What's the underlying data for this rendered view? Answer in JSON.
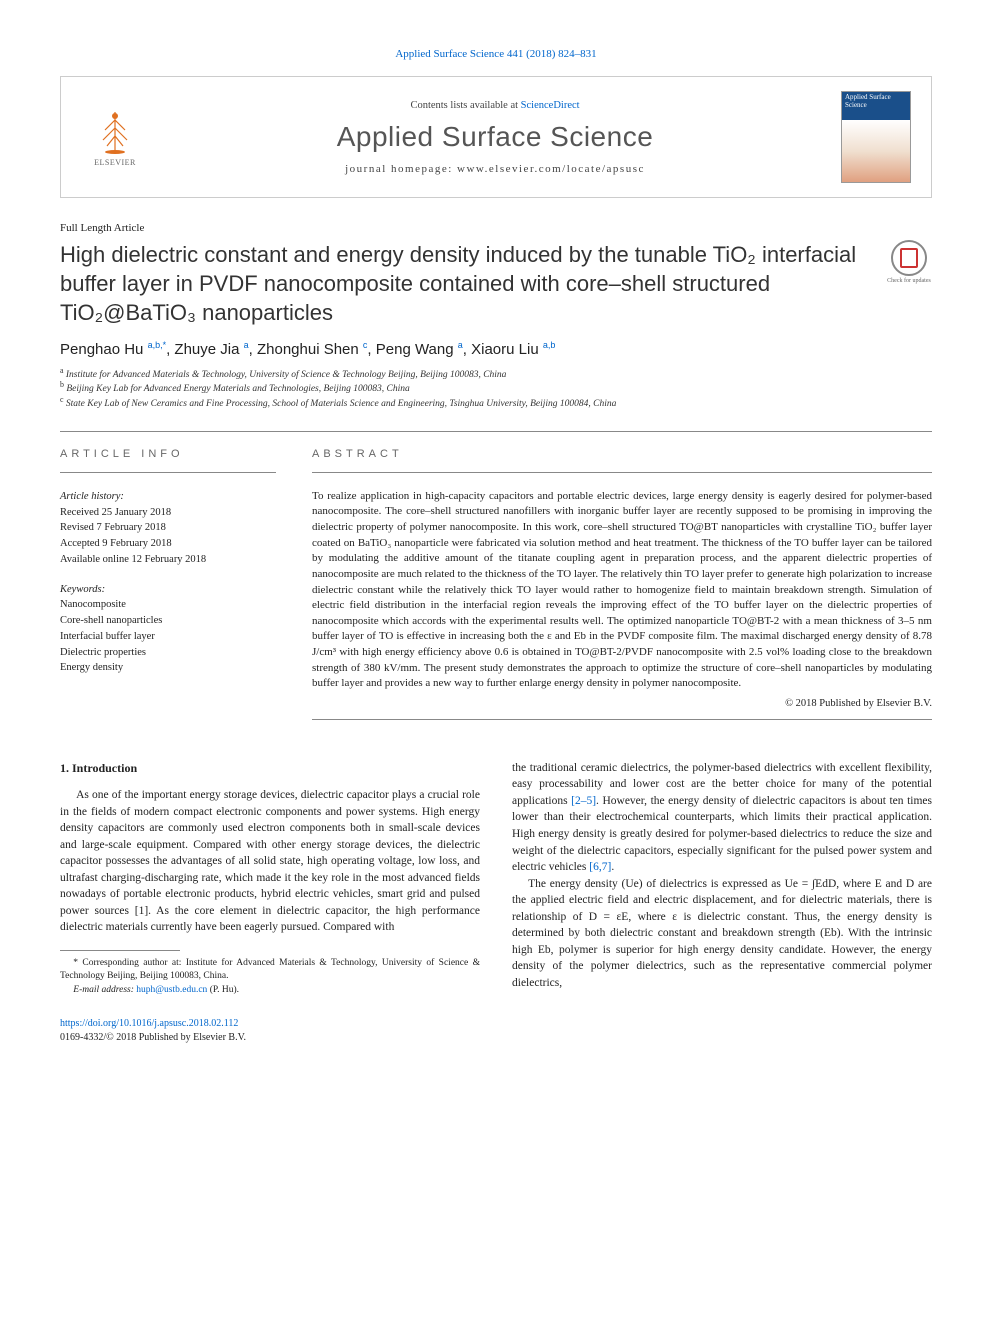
{
  "header_link": {
    "text": "Applied Surface Science 441 (2018) 824–831"
  },
  "masthead": {
    "contents_prefix": "Contents lists available at ",
    "contents_link": "ScienceDirect",
    "journal_name": "Applied Surface Science",
    "homepage_prefix": "journal homepage: ",
    "homepage_url": "www.elsevier.com/locate/apsusc",
    "elsevier_label": "ELSEVIER",
    "cover_title": "Applied Surface Science"
  },
  "article_type": "Full Length Article",
  "title": "High dielectric constant and energy density induced by the tunable TiO₂ interfacial buffer layer in PVDF nanocomposite contained with core–shell structured TiO₂@BaTiO₃ nanoparticles",
  "check_updates": "Check for updates",
  "authors_html": "Penghao Hu <sup>a,b,*</sup>, Zhuye Jia <sup>a</sup>, Zhonghui Shen <sup>c</sup>, Peng Wang <sup>a</sup>, Xiaoru Liu <sup>a,b</sup>",
  "affiliations": {
    "a": "Institute for Advanced Materials & Technology, University of Science & Technology Beijing, Beijing 100083, China",
    "b": "Beijing Key Lab for Advanced Energy Materials and Technologies, Beijing 100083, China",
    "c": "State Key Lab of New Ceramics and Fine Processing, School of Materials Science and Engineering, Tsinghua University, Beijing 100084, China"
  },
  "article_info": {
    "heading": "ARTICLE INFO",
    "history_label": "Article history:",
    "received": "Received 25 January 2018",
    "revised": "Revised 7 February 2018",
    "accepted": "Accepted 9 February 2018",
    "online": "Available online 12 February 2018",
    "keywords_label": "Keywords:",
    "keywords": [
      "Nanocomposite",
      "Core-shell nanoparticles",
      "Interfacial buffer layer",
      "Dielectric properties",
      "Energy density"
    ]
  },
  "abstract": {
    "heading": "ABSTRACT",
    "text": "To realize application in high-capacity capacitors and portable electric devices, large energy density is eagerly desired for polymer-based nanocomposite. The core–shell structured nanofillers with inorganic buffer layer are recently supposed to be promising in improving the dielectric property of polymer nanocomposite. In this work, core–shell structured TO@BT nanoparticles with crystalline TiO₂ buffer layer coated on BaTiO₃ nanoparticle were fabricated via solution method and heat treatment. The thickness of the TO buffer layer can be tailored by modulating the additive amount of the titanate coupling agent in preparation process, and the apparent dielectric properties of nanocomposite are much related to the thickness of the TO layer. The relatively thin TO layer prefer to generate high polarization to increase dielectric constant while the relatively thick TO layer would rather to homogenize field to maintain breakdown strength. Simulation of electric field distribution in the interfacial region reveals the improving effect of the TO buffer layer on the dielectric properties of nanocomposite which accords with the experimental results well. The optimized nanoparticle TO@BT-2 with a mean thickness of 3–5 nm buffer layer of TO is effective in increasing both the ε and Eb in the PVDF composite film. The maximal discharged energy density of 8.78 J/cm³ with high energy efficiency above 0.6 is obtained in TO@BT-2/PVDF nanocomposite with 2.5 vol% loading close to the breakdown strength of 380 kV/mm. The present study demonstrates the approach to optimize the structure of core–shell nanoparticles by modulating buffer layer and provides a new way to further enlarge energy density in polymer nanocomposite.",
    "copyright": "© 2018 Published by Elsevier B.V."
  },
  "intro": {
    "heading": "1. Introduction",
    "p1": "As one of the important energy storage devices, dielectric capacitor plays a crucial role in the fields of modern compact electronic components and power systems. High energy density capacitors are commonly used electron components both in small-scale devices and large-scale equipment. Compared with other energy storage devices, the dielectric capacitor possesses the advantages of all solid state, high operating voltage, low loss, and ultrafast charging-discharging rate, which made it the key role in the most advanced fields nowadays of portable electronic products, hybrid electric vehicles, smart grid and pulsed power sources [1]. As the core element in dielectric capacitor, the high performance dielectric materials currently have been eagerly pursued. Compared with",
    "p2a": "the traditional ceramic dielectrics, the polymer-based dielectrics with excellent flexibility, easy processability and lower cost are the better choice for many of the potential applications ",
    "p2_ref": "[2–5]",
    "p2b": ". However, the energy density of dielectric capacitors is about ten times lower than their electrochemical counterparts, which limits their practical application. High energy density is greatly desired for polymer-based dielectrics to reduce the size and weight of the dielectric capacitors, especially significant for the pulsed power system and electric vehicles ",
    "p2_ref2": "[6,7]",
    "p2c": ".",
    "p3": "The energy density (Ue) of dielectrics is expressed as Ue = ∫EdD, where E and D are the applied electric field and electric displacement, and for dielectric materials, there is relationship of D = εE, where ε is dielectric constant. Thus, the energy density is determined by both dielectric constant and breakdown strength (Eb). With the intrinsic high Eb, polymer is superior for high energy density candidate. However, the energy density of the polymer dielectrics, such as the representative commercial polymer dielectrics,"
  },
  "footnote": {
    "corresponding": "* Corresponding author at: Institute for Advanced Materials & Technology, University of Science & Technology Beijing, Beijing 100083, China.",
    "email_label": "E-mail address: ",
    "email": "huph@ustb.edu.cn",
    "email_suffix": " (P. Hu)."
  },
  "footer": {
    "doi": "https://doi.org/10.1016/j.apsusc.2018.02.112",
    "issn_line": "0169-4332/© 2018 Published by Elsevier B.V."
  },
  "colors": {
    "link": "#0066cc",
    "text": "#222222",
    "muted": "#666666",
    "border": "#cccccc",
    "cover_blue": "#1a4f8a"
  }
}
